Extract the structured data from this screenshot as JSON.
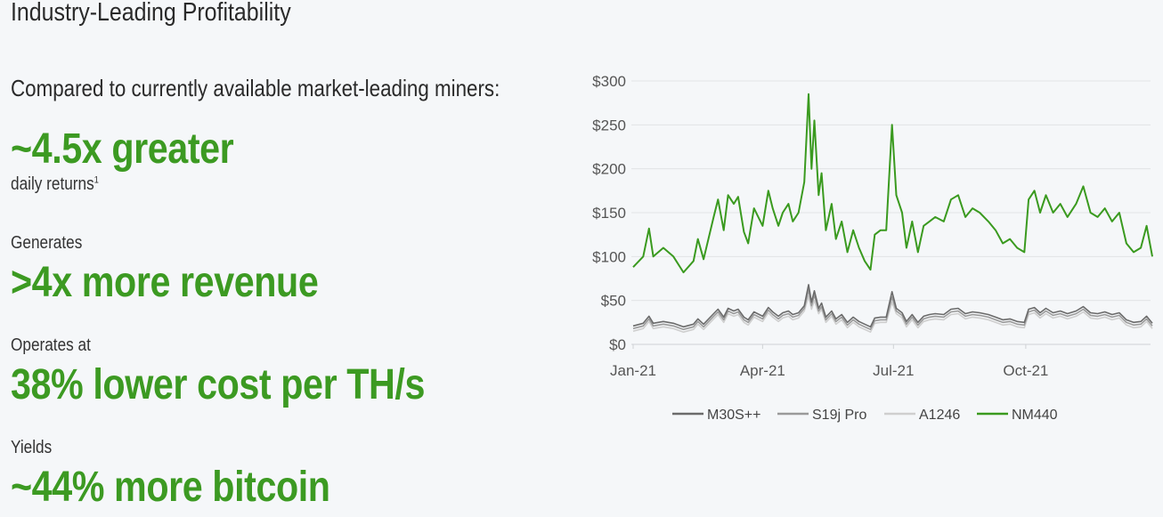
{
  "slide": {
    "title": "Industry-Leading Profitability",
    "intro": "Compared to currently available market-leading miners:",
    "stats": [
      {
        "label": "",
        "value": "~4.5x greater",
        "note": "daily returns",
        "footnote": "1"
      },
      {
        "label": "Generates",
        "value": ">4x more revenue"
      },
      {
        "label": "Operates at",
        "value": "38% lower cost per TH/s"
      },
      {
        "label": "Yields",
        "value": "~44% more bitcoin"
      }
    ],
    "accent_color": "#3c9a22"
  },
  "chart_data": {
    "type": "line",
    "title": "",
    "xlabel": "",
    "ylabel": "",
    "ylim": [
      0,
      300
    ],
    "yticks": [
      "$0",
      "$50",
      "$100",
      "$150",
      "$200",
      "$250",
      "$300"
    ],
    "ytick_values": [
      0,
      50,
      100,
      150,
      200,
      250,
      300
    ],
    "xticks": [
      "Jan-21",
      "Apr-21",
      "Jul-21",
      "Oct-21"
    ],
    "xtick_dates": [
      "2021-01-01",
      "2021-04-01",
      "2021-07-01",
      "2021-10-01"
    ],
    "grid": "horizontal",
    "legend": "bottom",
    "x": [
      "2021-01-01",
      "2021-01-08",
      "2021-01-12",
      "2021-01-15",
      "2021-01-22",
      "2021-01-29",
      "2021-02-05",
      "2021-02-12",
      "2021-02-15",
      "2021-02-19",
      "2021-02-26",
      "2021-03-01",
      "2021-03-05",
      "2021-03-08",
      "2021-03-12",
      "2021-03-15",
      "2021-03-19",
      "2021-03-22",
      "2021-03-26",
      "2021-04-01",
      "2021-04-05",
      "2021-04-08",
      "2021-04-12",
      "2021-04-15",
      "2021-04-19",
      "2021-04-22",
      "2021-04-26",
      "2021-04-30",
      "2021-05-03",
      "2021-05-05",
      "2021-05-07",
      "2021-05-10",
      "2021-05-12",
      "2021-05-15",
      "2021-05-19",
      "2021-05-22",
      "2021-05-26",
      "2021-05-30",
      "2021-06-03",
      "2021-06-07",
      "2021-06-11",
      "2021-06-15",
      "2021-06-18",
      "2021-06-22",
      "2021-06-26",
      "2021-06-30",
      "2021-07-03",
      "2021-07-07",
      "2021-07-10",
      "2021-07-14",
      "2021-07-18",
      "2021-07-22",
      "2021-07-26",
      "2021-07-30",
      "2021-08-05",
      "2021-08-10",
      "2021-08-15",
      "2021-08-20",
      "2021-08-25",
      "2021-08-30",
      "2021-09-05",
      "2021-09-10",
      "2021-09-15",
      "2021-09-20",
      "2021-09-25",
      "2021-09-30",
      "2021-10-03",
      "2021-10-07",
      "2021-10-11",
      "2021-10-15",
      "2021-10-20",
      "2021-10-25",
      "2021-10-30",
      "2021-11-05",
      "2021-11-10",
      "2021-11-15",
      "2021-11-20",
      "2021-11-25",
      "2021-11-30",
      "2021-12-05",
      "2021-12-10",
      "2021-12-15",
      "2021-12-20",
      "2021-12-24",
      "2021-12-28"
    ],
    "series": [
      {
        "name": "M30S++",
        "color": "#6b6b6b",
        "values": [
          21,
          24,
          32,
          24,
          26,
          24,
          20,
          23,
          29,
          23,
          35,
          40,
          31,
          41,
          38,
          40,
          31,
          28,
          37,
          32,
          42,
          37,
          32,
          36,
          38,
          34,
          36,
          44,
          68,
          48,
          61,
          41,
          47,
          31,
          38,
          29,
          34,
          25,
          31,
          26,
          23,
          20,
          30,
          31,
          31,
          60,
          41,
          36,
          26,
          34,
          25,
          32,
          34,
          35,
          34,
          40,
          41,
          35,
          37,
          36,
          34,
          31,
          28,
          29,
          26,
          25,
          40,
          42,
          36,
          41,
          36,
          38,
          35,
          38,
          43,
          36,
          35,
          37,
          34,
          36,
          28,
          25,
          26,
          32,
          24
        ]
      },
      {
        "name": "S19j Pro",
        "color": "#9a9a9a",
        "values": [
          18,
          21,
          29,
          21,
          23,
          21,
          17,
          20,
          26,
          20,
          32,
          37,
          28,
          38,
          35,
          37,
          28,
          25,
          34,
          29,
          39,
          34,
          29,
          33,
          35,
          31,
          33,
          41,
          62,
          44,
          56,
          38,
          43,
          28,
          35,
          26,
          31,
          22,
          28,
          23,
          20,
          17,
          27,
          28,
          28,
          54,
          38,
          33,
          23,
          31,
          22,
          29,
          31,
          32,
          31,
          37,
          38,
          32,
          34,
          33,
          31,
          28,
          25,
          26,
          23,
          22,
          37,
          39,
          33,
          38,
          33,
          35,
          32,
          35,
          40,
          33,
          32,
          34,
          31,
          33,
          25,
          22,
          23,
          29,
          21
        ]
      },
      {
        "name": "A1246",
        "color": "#cfcfcf",
        "values": [
          15,
          18,
          26,
          18,
          20,
          18,
          14,
          17,
          23,
          17,
          29,
          34,
          25,
          35,
          32,
          34,
          25,
          22,
          31,
          26,
          36,
          31,
          26,
          30,
          32,
          28,
          30,
          38,
          55,
          40,
          50,
          35,
          40,
          25,
          32,
          23,
          28,
          19,
          25,
          20,
          17,
          14,
          24,
          25,
          25,
          48,
          35,
          30,
          20,
          28,
          19,
          26,
          28,
          29,
          28,
          34,
          35,
          29,
          31,
          30,
          28,
          25,
          22,
          23,
          20,
          19,
          34,
          36,
          30,
          35,
          30,
          32,
          29,
          32,
          37,
          30,
          29,
          31,
          28,
          30,
          22,
          19,
          20,
          26,
          18
        ]
      },
      {
        "name": "NM440",
        "color": "#3a9a1f",
        "values": [
          88,
          100,
          132,
          100,
          110,
          100,
          82,
          95,
          120,
          97,
          145,
          165,
          130,
          170,
          160,
          168,
          128,
          115,
          155,
          135,
          175,
          155,
          135,
          150,
          160,
          140,
          150,
          185,
          285,
          200,
          255,
          170,
          195,
          130,
          160,
          120,
          140,
          105,
          130,
          110,
          95,
          85,
          125,
          130,
          130,
          250,
          170,
          150,
          110,
          140,
          105,
          135,
          140,
          145,
          140,
          165,
          170,
          145,
          155,
          150,
          140,
          130,
          115,
          120,
          110,
          105,
          165,
          175,
          150,
          170,
          150,
          160,
          145,
          160,
          180,
          150,
          145,
          155,
          140,
          150,
          115,
          105,
          110,
          135,
          100
        ]
      }
    ]
  }
}
